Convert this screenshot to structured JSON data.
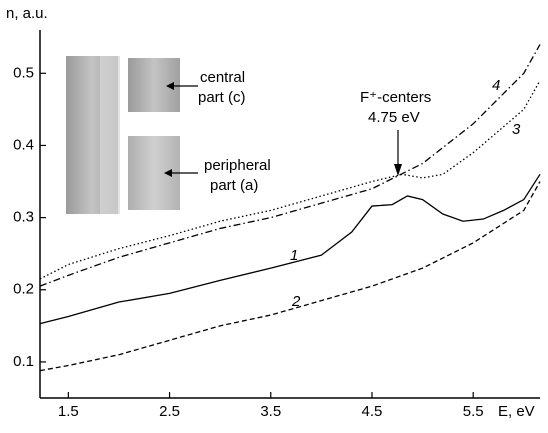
{
  "chart_data": {
    "type": "line",
    "ylabel": "n, a.u.",
    "xlabel": "E, eV",
    "xlim": [
      1.22,
      6.16
    ],
    "xticks": [
      1.5,
      2.5,
      3.5,
      4.5,
      5.5
    ],
    "ylim": [
      0.05,
      0.56
    ],
    "yticks": [
      0.1,
      0.2,
      0.3,
      0.4,
      0.5
    ],
    "series": [
      {
        "name": "1",
        "color": "#000000",
        "dash": "none",
        "x": [
          1.22,
          1.5,
          2.0,
          2.5,
          3.0,
          3.5,
          4.0,
          4.3,
          4.5,
          4.7,
          4.85,
          5.0,
          5.2,
          5.4,
          5.6,
          5.8,
          6.0,
          6.16
        ],
        "values": [
          0.153,
          0.163,
          0.183,
          0.195,
          0.213,
          0.23,
          0.248,
          0.28,
          0.316,
          0.318,
          0.33,
          0.325,
          0.305,
          0.295,
          0.298,
          0.31,
          0.325,
          0.36
        ]
      },
      {
        "name": "2",
        "color": "#000000",
        "dash": "5,3",
        "x": [
          1.22,
          1.5,
          2.0,
          2.5,
          3.0,
          3.5,
          4.0,
          4.5,
          5.0,
          5.5,
          6.0,
          6.16
        ],
        "values": [
          0.088,
          0.095,
          0.11,
          0.13,
          0.15,
          0.165,
          0.185,
          0.205,
          0.23,
          0.265,
          0.31,
          0.35
        ]
      },
      {
        "name": "3",
        "color": "#000000",
        "dash": "1.5,2.5",
        "x": [
          1.22,
          1.5,
          2.0,
          2.5,
          3.0,
          3.5,
          4.0,
          4.5,
          4.8,
          5.0,
          5.2,
          5.5,
          6.0,
          6.16
        ],
        "values": [
          0.215,
          0.235,
          0.257,
          0.275,
          0.295,
          0.31,
          0.33,
          0.35,
          0.36,
          0.355,
          0.36,
          0.39,
          0.45,
          0.49
        ]
      },
      {
        "name": "4",
        "color": "#000000",
        "dash": "7,3,1.5,3",
        "x": [
          1.22,
          1.5,
          2.0,
          2.5,
          3.0,
          3.5,
          4.0,
          4.5,
          5.0,
          5.5,
          6.0,
          6.16
        ],
        "values": [
          0.205,
          0.22,
          0.245,
          0.265,
          0.285,
          0.3,
          0.32,
          0.34,
          0.375,
          0.43,
          0.5,
          0.54
        ]
      }
    ],
    "annotations": [
      "F⁺-centers",
      "4.75 eV",
      "central",
      "part (c)",
      "peripheral",
      "part (a)"
    ]
  }
}
